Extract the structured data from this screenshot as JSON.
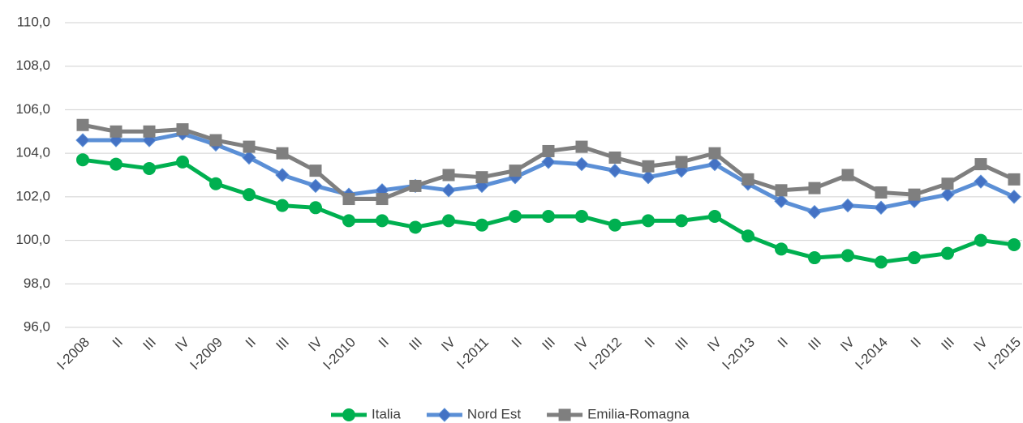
{
  "chart_data": {
    "type": "line",
    "categories": [
      "I-2008",
      "II",
      "III",
      "IV",
      "I-2009",
      "II",
      "III",
      "IV",
      "I-2010",
      "II",
      "III",
      "IV",
      "I-2011",
      "II",
      "III",
      "IV",
      "I-2012",
      "II",
      "III",
      "IV",
      "I-2013",
      "II",
      "III",
      "IV",
      "I-2014",
      "II",
      "III",
      "IV",
      "I-2015"
    ],
    "series": [
      {
        "name": "Italia",
        "color": "#00b050",
        "marker": "circle",
        "values": [
          103.7,
          103.5,
          103.3,
          103.6,
          102.6,
          102.1,
          101.6,
          101.5,
          100.9,
          100.9,
          100.6,
          100.9,
          100.7,
          101.1,
          101.1,
          101.1,
          100.7,
          100.9,
          100.9,
          101.1,
          100.2,
          99.6,
          99.2,
          99.3,
          99.0,
          99.2,
          99.4,
          100.0,
          99.8
        ]
      },
      {
        "name": "Nord Est",
        "color": "#5b8fd6",
        "marker": "diamond",
        "values": [
          104.6,
          104.6,
          104.6,
          104.9,
          104.4,
          103.8,
          103.0,
          102.5,
          102.1,
          102.3,
          102.5,
          102.3,
          102.5,
          102.9,
          103.6,
          103.5,
          103.2,
          102.9,
          103.2,
          103.5,
          102.6,
          101.8,
          101.3,
          101.6,
          101.5,
          101.8,
          102.1,
          102.7,
          102.0
        ]
      },
      {
        "name": "Emilia-Romagna",
        "color": "#7f7f7f",
        "marker": "square",
        "values": [
          105.3,
          105.0,
          105.0,
          105.1,
          104.6,
          104.3,
          104.0,
          103.2,
          101.9,
          101.9,
          102.5,
          103.0,
          102.9,
          103.2,
          104.1,
          104.3,
          103.8,
          103.4,
          103.6,
          104.0,
          102.8,
          102.3,
          102.4,
          103.0,
          102.2,
          102.1,
          102.6,
          103.5,
          102.8
        ]
      }
    ],
    "ylim": [
      96,
      110
    ],
    "yticks": [
      {
        "value": 96,
        "label": "96,0"
      },
      {
        "value": 98,
        "label": "98,0"
      },
      {
        "value": 100,
        "label": "100,0"
      },
      {
        "value": 102,
        "label": "102,0"
      },
      {
        "value": 104,
        "label": "104,0"
      },
      {
        "value": 106,
        "label": "106,0"
      },
      {
        "value": 108,
        "label": "108,0"
      },
      {
        "value": 110,
        "label": "110,0"
      }
    ],
    "grid": true,
    "legend": "bottom"
  }
}
